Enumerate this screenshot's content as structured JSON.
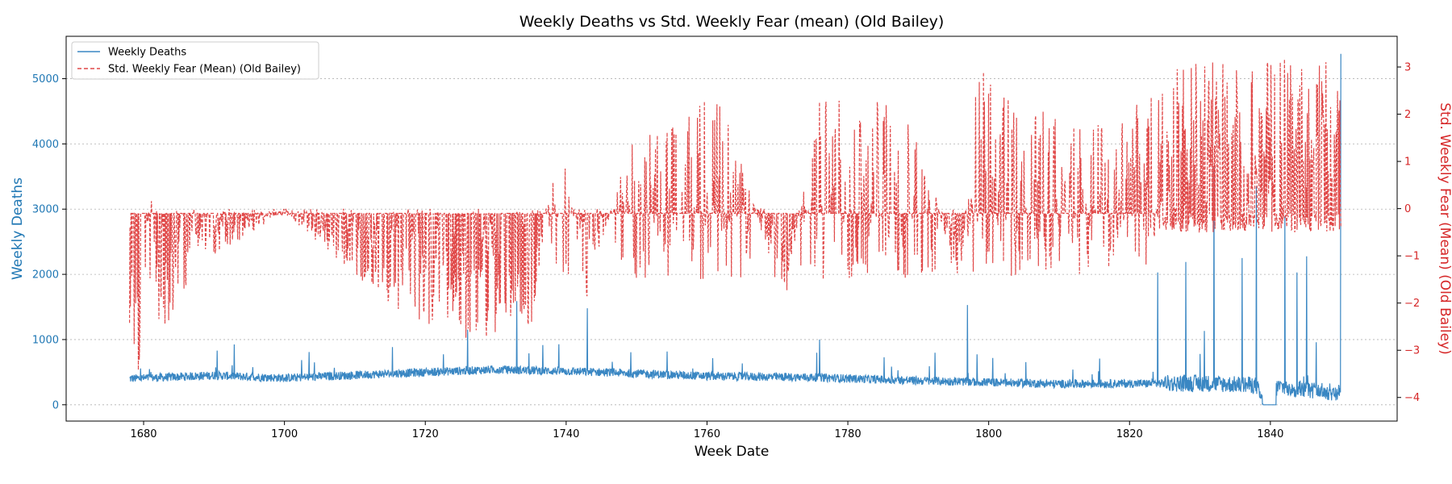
{
  "chart_data": {
    "type": "line",
    "title": "Weekly Deaths vs Std. Weekly Fear (mean) (Old Bailey)",
    "xlabel": "Week Date",
    "ylabel_left": "Weekly Deaths",
    "ylabel_right": "Std. Weekly Fear (Mean) (Old Bailey)",
    "xlim": [
      1669,
      1858
    ],
    "ylim_left": [
      -250,
      5650
    ],
    "ylim_right": [
      -4.5,
      3.65
    ],
    "x_ticks": [
      1680,
      1700,
      1720,
      1740,
      1760,
      1780,
      1800,
      1820,
      1840
    ],
    "y_left_ticks": [
      0,
      1000,
      2000,
      3000,
      4000,
      5000
    ],
    "y_right_ticks": [
      -4,
      -3,
      -2,
      -1,
      0,
      1,
      2,
      3
    ],
    "grid": "horizontal dotted (left axis)",
    "legend": {
      "placement": "top-left",
      "entries": [
        "Weekly Deaths",
        "Std. Weekly Fear (Mean) (Old Bailey)"
      ]
    },
    "colors": {
      "deaths": "#3a87c3",
      "fear": "#e04848",
      "left_axis": "#1f77b4",
      "right_axis": "#d62728"
    },
    "series": [
      {
        "name": "Weekly Deaths",
        "axis": "left",
        "style": "solid",
        "x_range": [
          1678,
          1850
        ],
        "points": [
          [
            1678,
            350
          ],
          [
            1680,
            420
          ],
          [
            1681,
            770
          ],
          [
            1682,
            600
          ],
          [
            1685,
            450
          ],
          [
            1690,
            470
          ],
          [
            1695,
            430
          ],
          [
            1700,
            420
          ],
          [
            1705,
            440
          ],
          [
            1710,
            480
          ],
          [
            1715,
            510
          ],
          [
            1720,
            520
          ],
          [
            1725,
            560
          ],
          [
            1726,
            1150
          ],
          [
            1730,
            560
          ],
          [
            1733,
            1590
          ],
          [
            1735,
            520
          ],
          [
            1740,
            560
          ],
          [
            1743,
            1480
          ],
          [
            1745,
            520
          ],
          [
            1750,
            480
          ],
          [
            1755,
            440
          ],
          [
            1760,
            440
          ],
          [
            1765,
            470
          ],
          [
            1770,
            450
          ],
          [
            1775,
            420
          ],
          [
            1776,
            1000
          ],
          [
            1780,
            390
          ],
          [
            1785,
            380
          ],
          [
            1790,
            390
          ],
          [
            1797,
            1530
          ],
          [
            1800,
            330
          ],
          [
            1805,
            320
          ],
          [
            1810,
            320
          ],
          [
            1815,
            330
          ],
          [
            1820,
            330
          ],
          [
            1824,
            2030
          ],
          [
            1828,
            2190
          ],
          [
            1830,
            430
          ],
          [
            1832,
            3650
          ],
          [
            1836,
            2250
          ],
          [
            1838,
            3350
          ],
          [
            1839,
            0
          ],
          [
            1841,
            300
          ],
          [
            1844,
            200
          ],
          [
            1848,
            200
          ],
          [
            1850,
            5380
          ]
        ]
      },
      {
        "name": "Std. Weekly Fear (Mean) (Old Bailey)",
        "axis": "right",
        "style": "dashed",
        "x_range": [
          1678,
          1850
        ],
        "points": [
          [
            1678,
            -2.5
          ],
          [
            1680,
            -4.2
          ],
          [
            1681,
            0.75
          ],
          [
            1682,
            -2.8
          ],
          [
            1688,
            -1.2
          ],
          [
            1700,
            -0.1
          ],
          [
            1717,
            -2.3
          ],
          [
            1726,
            -2.8
          ],
          [
            1735,
            -2.5
          ],
          [
            1739,
            1.7
          ],
          [
            1743,
            -2.0
          ],
          [
            1749,
            1.4
          ],
          [
            1762,
            2.5
          ],
          [
            1771,
            -2.2
          ],
          [
            1776,
            2.6
          ],
          [
            1790,
            2.1
          ],
          [
            1796,
            -2.3
          ],
          [
            1798,
            3.2
          ],
          [
            1810,
            2.3
          ],
          [
            1820,
            2.1
          ],
          [
            1825,
            3.0
          ],
          [
            1830,
            3.1
          ],
          [
            1835,
            3.1
          ],
          [
            1838,
            3.1
          ],
          [
            1841,
            3.3
          ],
          [
            1845,
            3.0
          ],
          [
            1849,
            3.2
          ],
          [
            1850,
            2.8
          ]
        ]
      }
    ]
  }
}
